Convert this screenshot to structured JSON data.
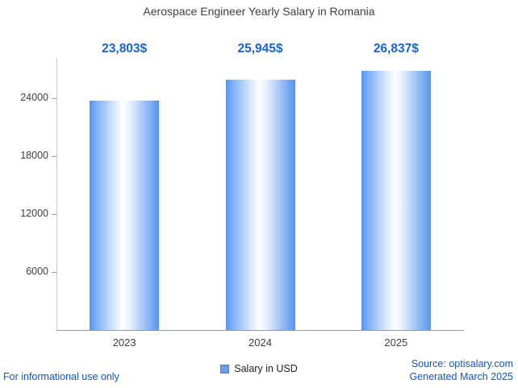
{
  "legend": {
    "label": "Salary in USD",
    "marker_color": "#6d9eeb"
  },
  "footer": {
    "left": "For informational use only",
    "source": "Source: optisalary.com",
    "generated": "Generated March 2025"
  },
  "colors": {
    "value_label": "#1565d8",
    "footer_text": "#1155cc",
    "bar_edge": "#5395ef",
    "axis": "#9a9a9a",
    "title_text": "#3c4043"
  },
  "chart_data": {
    "type": "bar",
    "title": "Aerospace Engineer Yearly Salary in Romania",
    "categories": [
      "2023",
      "2024",
      "2025"
    ],
    "series": [
      {
        "name": "Salary in USD",
        "values": [
          23803,
          25945,
          26837
        ]
      }
    ],
    "value_labels": [
      "23,803$",
      "25,945$",
      "26,837$"
    ],
    "yticks": [
      6000,
      12000,
      18000,
      24000
    ],
    "ylim": [
      0,
      28200
    ],
    "xlabel": "",
    "ylabel": "",
    "grid": false,
    "legend_position": "bottom"
  }
}
